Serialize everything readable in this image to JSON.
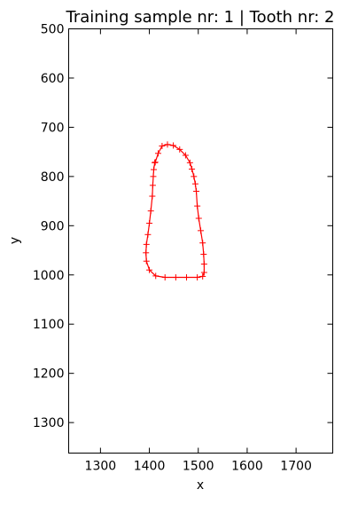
{
  "chart_data": {
    "type": "line",
    "title": "Training sample nr: 1 | Tooth nr: 2",
    "xlabel": "x",
    "ylabel": "y",
    "xlim": [
      1235,
      1775
    ],
    "ylim": [
      500,
      1362
    ],
    "y_inverted": true,
    "grid": false,
    "legend": "none",
    "xticks": [
      1300,
      1400,
      1500,
      1600,
      1700
    ],
    "yticks": [
      500,
      600,
      700,
      800,
      900,
      1000,
      1100,
      1200,
      1300
    ],
    "series": [
      {
        "color": "#ff0000",
        "marker": "plus",
        "closed": true,
        "x": [
          1412,
          1418,
          1426,
          1437,
          1449,
          1462,
          1474,
          1483,
          1487,
          1491,
          1494,
          1496,
          1498,
          1501,
          1505,
          1509,
          1511,
          1512,
          1512,
          1509,
          1498,
          1476,
          1454,
          1432,
          1413,
          1400,
          1394,
          1393,
          1394,
          1397,
          1400,
          1403,
          1406,
          1407,
          1408,
          1409,
          1411
        ],
        "y": [
          771,
          753,
          738,
          735,
          737,
          745,
          757,
          772,
          785,
          800,
          815,
          830,
          860,
          885,
          910,
          935,
          958,
          978,
          995,
          1003,
          1005,
          1005,
          1005,
          1005,
          1002,
          990,
          972,
          955,
          938,
          918,
          895,
          870,
          840,
          818,
          800,
          786,
          772
        ]
      }
    ]
  }
}
